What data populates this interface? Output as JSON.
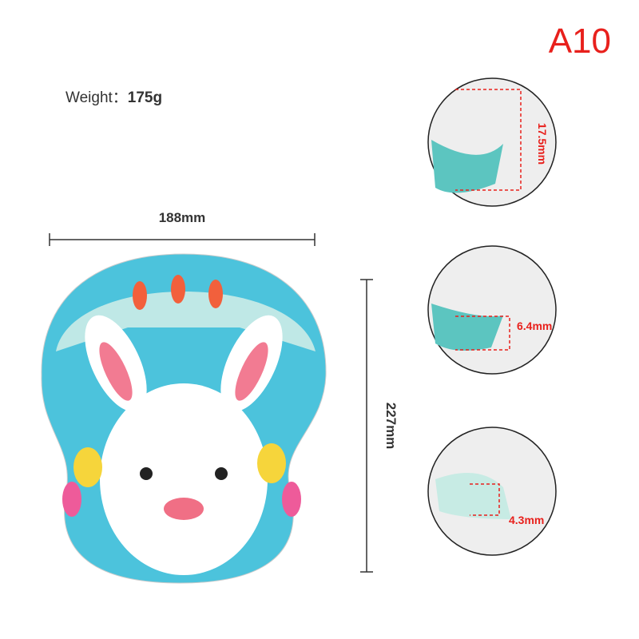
{
  "label": "A10",
  "weight": {
    "label": "Weight：",
    "value": "175g"
  },
  "width": "188mm",
  "height": "227mm",
  "details": [
    "17.5mm",
    "6.4mm",
    "4.3mm"
  ]
}
